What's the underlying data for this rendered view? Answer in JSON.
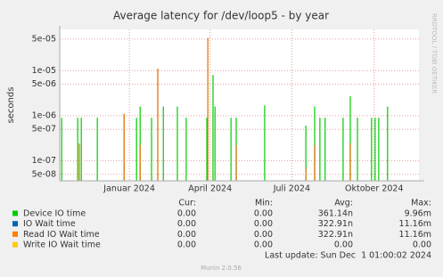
{
  "chart_data": {
    "type": "bar",
    "title": "Average latency for /dev/loop5 - by year",
    "y_label": "seconds",
    "side_text": "RRDTOOL / TOBI OETIKER",
    "log_scale": true,
    "grid": true,
    "xlim": [
      2023.787,
      2024.886
    ],
    "xticks": [
      {
        "value": 2024.0,
        "label": "Januar 2024"
      },
      {
        "value": 2024.247,
        "label": "April 2024"
      },
      {
        "value": 2024.497,
        "label": "Juli 2024"
      },
      {
        "value": 2024.749,
        "label": "Oktober 2024"
      }
    ],
    "ylim": [
      3.6e-08,
      8.2e-05
    ],
    "yticks": [
      {
        "value": 5e-08,
        "label": "5e-08"
      },
      {
        "value": 1e-07,
        "label": "1e-07"
      },
      {
        "value": 5e-07,
        "label": "5e-07"
      },
      {
        "value": 1e-06,
        "label": "1e-06"
      },
      {
        "value": 5e-06,
        "label": "5e-06"
      },
      {
        "value": 1e-05,
        "label": "1e-05"
      },
      {
        "value": 5e-05,
        "label": "5e-05"
      }
    ],
    "legend_headers": [
      "Cur:",
      "Min:",
      "Avg:",
      "Max:"
    ],
    "series": [
      {
        "name": "Device IO time",
        "color": "#00cc00",
        "x": [
          2023.793,
          2023.842,
          2023.853,
          2023.902,
          2024.022,
          2024.033,
          2024.068,
          2024.104,
          2024.147,
          2024.174,
          2024.237,
          2024.256,
          2024.262,
          2024.311,
          2024.327,
          2024.414,
          2024.54,
          2024.567,
          2024.583,
          2024.599,
          2024.654,
          2024.676,
          2024.698,
          2024.741,
          2024.752,
          2024.763,
          2024.79
        ],
        "values": [
          9e-07,
          9e-07,
          9e-07,
          9e-07,
          9e-07,
          1.6e-06,
          9e-07,
          1.6e-06,
          1.6e-06,
          9e-07,
          9e-07,
          8e-06,
          1.6e-06,
          9e-07,
          9e-07,
          1.7e-06,
          6e-07,
          1.6e-06,
          9e-07,
          9e-07,
          9e-07,
          2.7e-06,
          9e-07,
          9e-07,
          9e-07,
          9e-07,
          1.6e-06
        ],
        "cur": "0.00",
        "min": "0.00",
        "avg": "361.14n",
        "max": "9.96m"
      },
      {
        "name": "IO Wait time",
        "color": "#0066b3",
        "x": [
          2023.847,
          2023.984,
          2024.033,
          2024.087,
          2024.24,
          2024.327,
          2024.54,
          2024.567,
          2024.676
        ],
        "values": [
          2.4e-07,
          1.1e-06,
          2.2e-07,
          1.1e-05,
          5.3e-05,
          2.2e-07,
          7e-08,
          2.2e-07,
          2.4e-07
        ],
        "cur": "0.00",
        "min": "0.00",
        "avg": "322.91n",
        "max": "11.16m"
      },
      {
        "name": "Read IO Wait time",
        "color": "#ff8000",
        "x": [
          2023.847,
          2023.984,
          2024.033,
          2024.087,
          2024.24,
          2024.327,
          2024.54,
          2024.567,
          2024.676
        ],
        "values": [
          2.4e-07,
          1.1e-06,
          2.2e-07,
          1.1e-05,
          5.3e-05,
          2.2e-07,
          7e-08,
          2.2e-07,
          2.4e-07
        ],
        "cur": "0.00",
        "min": "0.00",
        "avg": "322.91n",
        "max": "11.16m"
      },
      {
        "name": "Write IO Wait time",
        "color": "#ffcc00",
        "x": [],
        "values": [],
        "cur": "0.00",
        "min": "0.00",
        "avg": "0.00",
        "max": "0.00"
      }
    ],
    "last_update": "Last update: Sun Dec  1 01:00:02 2024",
    "footer": "Munin 2.0.56"
  }
}
